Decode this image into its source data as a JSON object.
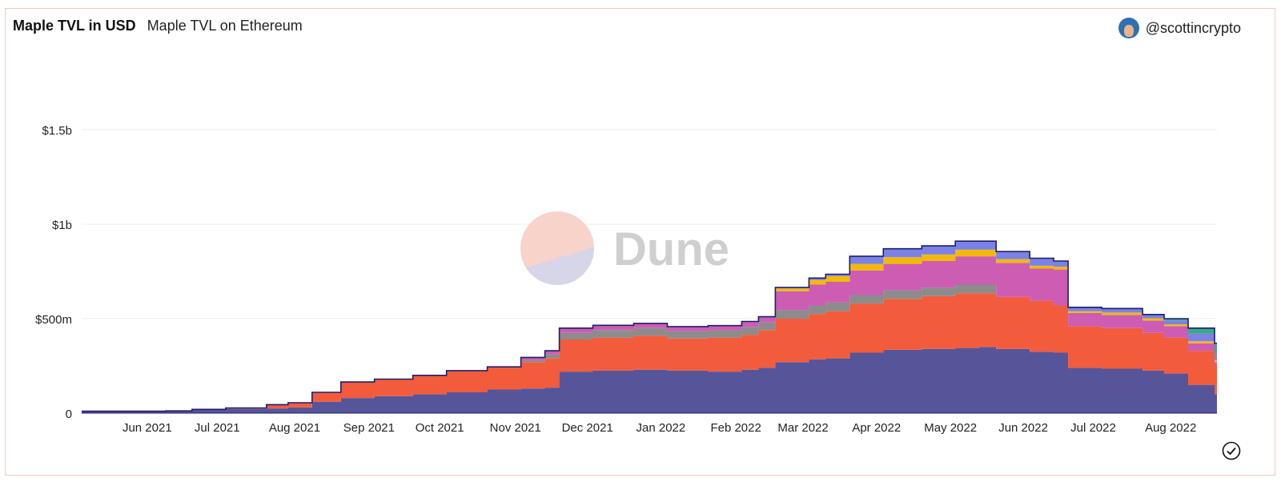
{
  "header": {
    "title": "Maple TVL in USD",
    "subtitle": "Maple TVL on Ethereum",
    "author": "@scottincrypto"
  },
  "watermark": "Dune",
  "icons": {
    "avatar": "avatar-icon",
    "status": "check-circle-icon"
  },
  "colors": {
    "series": [
      "#56559a",
      "#f25c3c",
      "#8c8c8c",
      "#cc5db3",
      "#f2b90c",
      "#7b82e6",
      "#3ea88a"
    ],
    "outline": "#1c1f6e",
    "grid": "#eeeeee",
    "watermark_top": "#f8d3ca",
    "watermark_bottom": "#d7d5e8",
    "watermark_text": "#cfcfcf"
  },
  "chart_data": {
    "type": "area",
    "stacked": true,
    "ylim": [
      0,
      1500
    ],
    "y_unit": "USD millions",
    "yticks": [
      {
        "value": 0,
        "label": "0"
      },
      {
        "value": 500,
        "label": "$500m"
      },
      {
        "value": 1000,
        "label": "$1b"
      },
      {
        "value": 1500,
        "label": "$1.5b"
      }
    ],
    "x_start": "2021-05-16",
    "x_end": "2022-09-01",
    "xticks": [
      {
        "date": "2021-06-01",
        "label": "Jun 2021"
      },
      {
        "date": "2021-07-01",
        "label": "Jul 2021"
      },
      {
        "date": "2021-08-01",
        "label": "Aug 2021"
      },
      {
        "date": "2021-09-01",
        "label": "Sep 2021"
      },
      {
        "date": "2021-10-01",
        "label": "Oct 2021"
      },
      {
        "date": "2021-11-01",
        "label": "Nov 2021"
      },
      {
        "date": "2021-12-01",
        "label": "Dec 2021"
      },
      {
        "date": "2022-01-01",
        "label": "Jan 2022"
      },
      {
        "date": "2022-02-01",
        "label": "Feb 2022"
      },
      {
        "date": "2022-03-01",
        "label": "Mar 2022"
      },
      {
        "date": "2022-04-01",
        "label": "Apr 2022"
      },
      {
        "date": "2022-05-01",
        "label": "May 2022"
      },
      {
        "date": "2022-06-01",
        "label": "Jun 2022"
      },
      {
        "date": "2022-07-01",
        "label": "Jul 2022"
      },
      {
        "date": "2022-08-01",
        "label": "Aug 2022"
      }
    ],
    "x": [
      "2021-05-16",
      "2021-05-31",
      "2021-06-15",
      "2021-06-20",
      "2021-07-01",
      "2021-07-15",
      "2021-08-01",
      "2021-08-10",
      "2021-08-20",
      "2021-09-01",
      "2021-09-15",
      "2021-10-01",
      "2021-10-15",
      "2021-11-01",
      "2021-11-15",
      "2021-11-25",
      "2021-12-01",
      "2021-12-15",
      "2022-01-01",
      "2022-01-15",
      "2022-02-01",
      "2022-02-15",
      "2022-02-22",
      "2022-03-01",
      "2022-03-15",
      "2022-03-22",
      "2022-04-01",
      "2022-04-15",
      "2022-05-01",
      "2022-05-15",
      "2022-05-25",
      "2022-06-01",
      "2022-06-15",
      "2022-06-25",
      "2022-07-01",
      "2022-07-15",
      "2022-08-01",
      "2022-08-10",
      "2022-08-20",
      "2022-08-31"
    ],
    "series": [
      {
        "values": [
          10,
          10,
          10,
          12,
          20,
          22,
          25,
          30,
          60,
          80,
          90,
          100,
          110,
          125,
          130,
          135,
          220,
          225,
          230,
          225,
          220,
          230,
          240,
          270,
          285,
          290,
          320,
          335,
          340,
          345,
          350,
          340,
          325,
          320,
          240,
          235,
          225,
          210,
          150,
          100
        ]
      },
      {
        "values": [
          0,
          0,
          0,
          0,
          0,
          5,
          20,
          25,
          50,
          85,
          90,
          100,
          115,
          120,
          140,
          155,
          170,
          175,
          180,
          170,
          180,
          185,
          200,
          230,
          240,
          250,
          260,
          270,
          280,
          290,
          285,
          275,
          270,
          250,
          220,
          215,
          200,
          190,
          180,
          150
        ]
      },
      {
        "values": [
          0,
          0,
          0,
          0,
          0,
          0,
          0,
          0,
          0,
          0,
          0,
          0,
          0,
          0,
          10,
          20,
          35,
          40,
          40,
          38,
          38,
          40,
          40,
          45,
          45,
          45,
          45,
          45,
          45,
          45,
          45,
          0,
          0,
          0,
          0,
          0,
          0,
          0,
          0,
          0
        ]
      },
      {
        "values": [
          0,
          0,
          0,
          0,
          0,
          0,
          0,
          0,
          0,
          0,
          0,
          0,
          0,
          0,
          15,
          20,
          25,
          25,
          25,
          25,
          25,
          30,
          30,
          100,
          110,
          110,
          130,
          140,
          140,
          150,
          150,
          180,
          170,
          190,
          70,
          70,
          65,
          60,
          40,
          20
        ]
      },
      {
        "values": [
          0,
          0,
          0,
          0,
          0,
          0,
          0,
          0,
          0,
          0,
          0,
          0,
          0,
          0,
          0,
          0,
          0,
          0,
          0,
          0,
          0,
          0,
          0,
          15,
          25,
          30,
          35,
          35,
          35,
          35,
          35,
          20,
          15,
          15,
          10,
          12,
          12,
          10,
          10,
          10
        ]
      },
      {
        "values": [
          0,
          0,
          0,
          0,
          0,
          0,
          0,
          0,
          0,
          0,
          0,
          0,
          0,
          0,
          0,
          0,
          0,
          0,
          0,
          0,
          0,
          0,
          0,
          5,
          10,
          10,
          40,
          45,
          45,
          45,
          45,
          40,
          40,
          30,
          20,
          22,
          20,
          20,
          40,
          40
        ]
      },
      {
        "values": [
          0,
          0,
          0,
          0,
          0,
          0,
          0,
          0,
          0,
          0,
          0,
          0,
          0,
          0,
          0,
          0,
          0,
          0,
          0,
          0,
          0,
          0,
          0,
          0,
          0,
          0,
          0,
          0,
          0,
          0,
          0,
          0,
          0,
          0,
          0,
          0,
          0,
          10,
          30,
          50
        ]
      }
    ]
  }
}
